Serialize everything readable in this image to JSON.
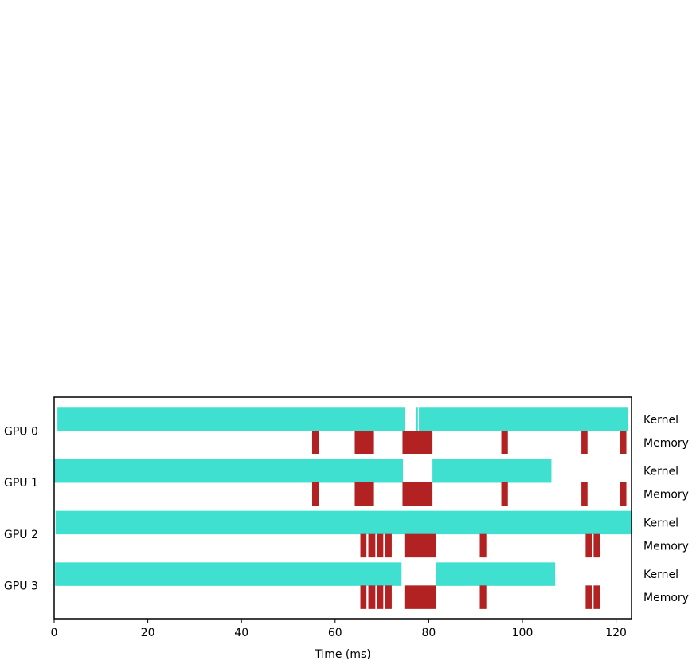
{
  "chart_data": {
    "type": "timeline",
    "xlabel": "Time (ms)",
    "xlim": [
      0,
      123.3
    ],
    "xticks": [
      0,
      20,
      40,
      60,
      80,
      100,
      120
    ],
    "row_labels": {
      "kernel": "Kernel",
      "memory": "Memory"
    },
    "colors": {
      "kernel": "#40e0d0",
      "memory": "#b22222"
    },
    "gpus": [
      {
        "name": "GPU 0",
        "kernel": [
          [
            0.7,
            75.0
          ],
          [
            77.2,
            77.7
          ],
          [
            77.9,
            122.6
          ]
        ],
        "memory": [
          [
            55.1,
            56.5
          ],
          [
            64.2,
            68.3
          ],
          [
            74.4,
            80.8
          ],
          [
            95.5,
            96.9
          ],
          [
            112.6,
            113.9
          ],
          [
            120.9,
            122.2
          ]
        ]
      },
      {
        "name": "GPU 1",
        "kernel": [
          [
            0.0,
            74.5
          ],
          [
            80.8,
            106.2
          ]
        ],
        "memory": [
          [
            55.1,
            56.5
          ],
          [
            64.2,
            68.3
          ],
          [
            74.4,
            80.8
          ],
          [
            95.5,
            96.9
          ],
          [
            112.6,
            113.9
          ],
          [
            120.9,
            122.2
          ]
        ]
      },
      {
        "name": "GPU 2",
        "kernel": [
          [
            0.3,
            123.3
          ]
        ],
        "memory": [
          [
            65.4,
            66.7
          ],
          [
            67.1,
            68.6
          ],
          [
            68.9,
            70.3
          ],
          [
            70.7,
            72.1
          ],
          [
            74.8,
            81.6
          ],
          [
            90.9,
            92.3
          ],
          [
            113.5,
            114.9
          ],
          [
            115.2,
            116.6
          ]
        ]
      },
      {
        "name": "GPU 3",
        "kernel": [
          [
            0.2,
            74.2
          ],
          [
            81.6,
            107.0
          ]
        ],
        "memory": [
          [
            65.4,
            66.7
          ],
          [
            67.1,
            68.6
          ],
          [
            68.9,
            70.3
          ],
          [
            70.7,
            72.1
          ],
          [
            74.8,
            81.6
          ],
          [
            90.9,
            92.3
          ],
          [
            113.5,
            114.9
          ],
          [
            115.2,
            116.6
          ]
        ]
      }
    ]
  }
}
